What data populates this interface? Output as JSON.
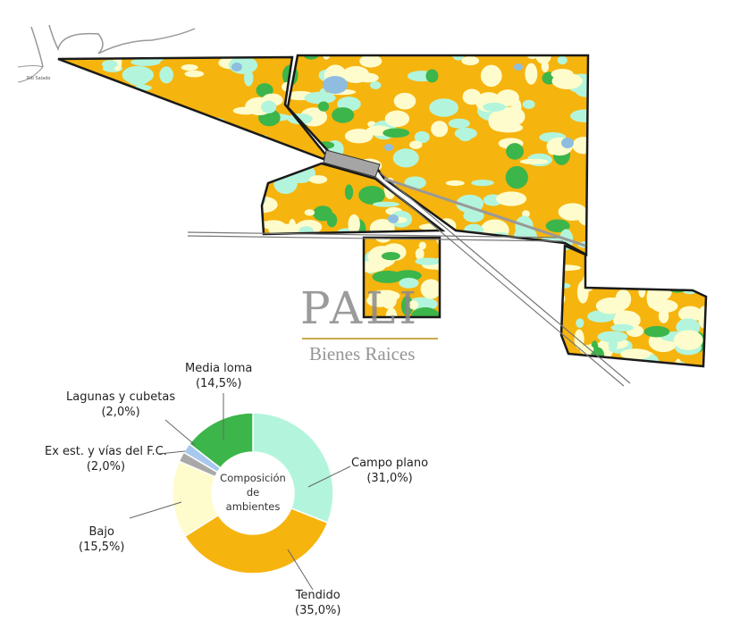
{
  "map": {
    "river_label": "Río Salado",
    "colors": {
      "campo_plano": "#b3f5dc",
      "tendido": "#f6b40e",
      "bajo": "#fefccc",
      "media_loma": "#3cb54a",
      "lagunas": "#8fbde0",
      "road": "#a9a9a9",
      "boundary": "#1a1a1a"
    }
  },
  "watermark": {
    "brand": "PALI",
    "subtitle": "Bienes Raices"
  },
  "chart_data": {
    "type": "pie",
    "donut": true,
    "title": "Composición de ambientes",
    "title_lines": [
      "Composición",
      "de",
      "ambientes"
    ],
    "categories": [
      "Campo plano",
      "Tendido",
      "Bajo",
      "Ex est. y vías del F.C.",
      "Lagunas y cubetas",
      "Media loma"
    ],
    "values": [
      31.0,
      35.0,
      15.5,
      2.0,
      2.0,
      14.5
    ],
    "labels": [
      "(31,0%)",
      "(35,0%)",
      "(15,5%)",
      "(2,0%)",
      "(2,0%)",
      "(14,5%)"
    ],
    "colors": [
      "#b3f5dc",
      "#f6b40e",
      "#fefccc",
      "#a9a9a9",
      "#a8c8ee",
      "#3cb54a"
    ],
    "start": "12 o'clock, clockwise"
  }
}
